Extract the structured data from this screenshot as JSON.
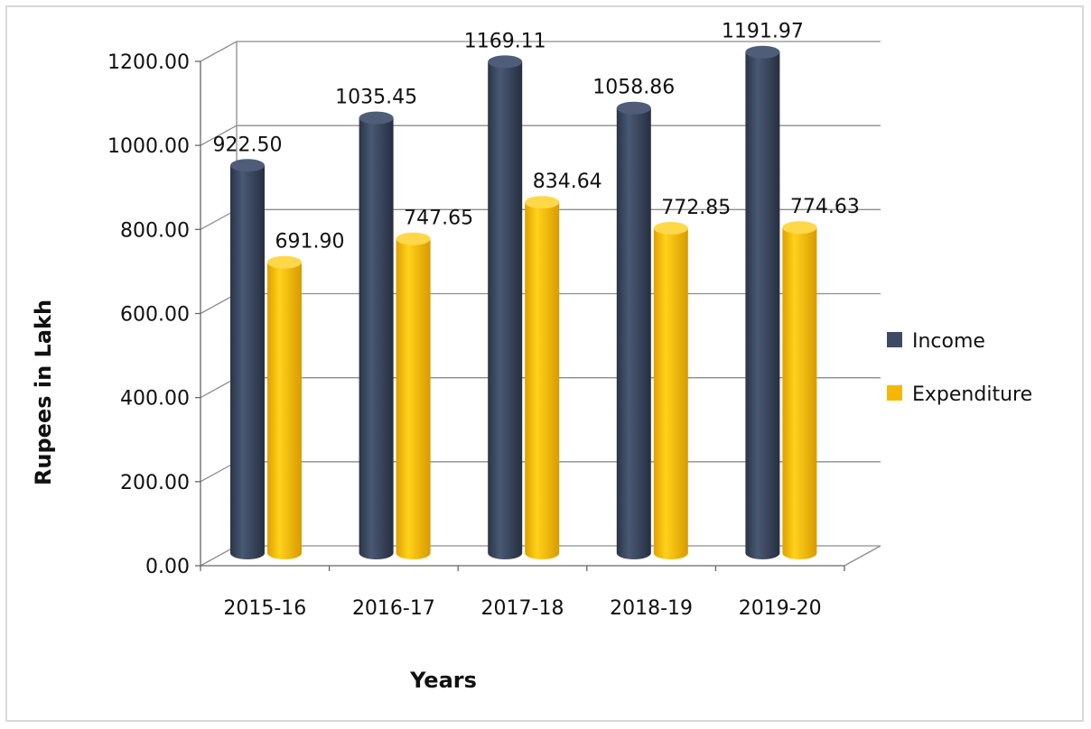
{
  "chart_data": {
    "type": "bar",
    "title": "",
    "xlabel": "Years",
    "ylabel": "Rupees in Lakh",
    "categories": [
      "2015-16",
      "2016-17",
      "2017-18",
      "2018-19",
      "2019-20"
    ],
    "series": [
      {
        "name": "Income",
        "values": [
          922.5,
          1035.45,
          1169.11,
          1058.86,
          1191.97
        ],
        "labels": [
          "922.50",
          "1035.45",
          "1169.11",
          "1058.86",
          "1191.97"
        ],
        "color": "#3d4a63"
      },
      {
        "name": "Expenditure",
        "values": [
          691.9,
          747.65,
          834.64,
          772.85,
          774.63
        ],
        "labels": [
          "691.90",
          "747.65",
          "834.64",
          "772.85",
          "774.63"
        ],
        "color": "#f5b800"
      }
    ],
    "yticks": [
      "0.00",
      "200.00",
      "400.00",
      "600.00",
      "800.00",
      "1000.00",
      "1200.00"
    ],
    "ylim": [
      0,
      1200
    ],
    "grid": true,
    "legend_position": "right"
  }
}
